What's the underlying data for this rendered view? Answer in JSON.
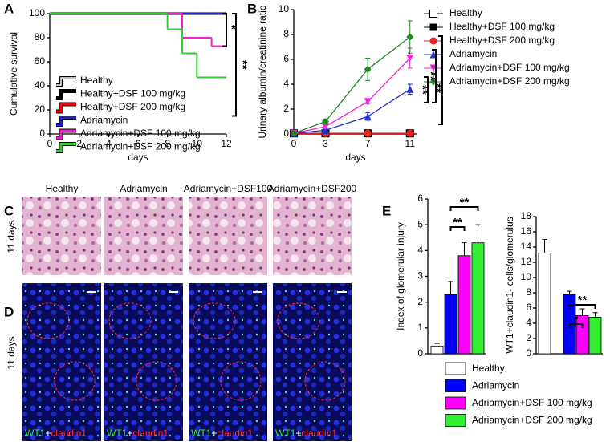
{
  "panels": {
    "C": "C",
    "D": "D",
    "E": "E",
    "columns": [
      "Healthy",
      "Adriamycin",
      "Adriamycin+DSF100",
      "Adriamycin+DSF200"
    ],
    "rows": [
      "11 days",
      "11 days"
    ],
    "stain": [
      "WT1",
      "+",
      "claudin1"
    ]
  },
  "legend_E": [
    {
      "name": "Healthy",
      "color": "#ffffff"
    },
    {
      "name": "Adriamycin",
      "color": "#0000ff"
    },
    {
      "name": "Adriamycin+DSF 100 mg/kg",
      "color": "#ff00ff"
    },
    {
      "name": "Adriamycin+DSF 200 mg/kg",
      "color": "#33ee33"
    }
  ],
  "chart_data": [
    {
      "type": "line",
      "label": "A",
      "step": "post",
      "xlabel": "days",
      "ylabel": "Cumulative survival",
      "x": [
        0,
        8,
        9,
        10,
        11,
        12
      ],
      "xlim": [
        0,
        12
      ],
      "xticks": [
        0,
        2,
        4,
        6,
        8,
        10,
        12
      ],
      "ylim": [
        0,
        100
      ],
      "yticks": [
        0,
        20,
        40,
        60,
        80,
        100
      ],
      "annotations": [
        "*",
        "**"
      ],
      "series": [
        {
          "name": "Healthy",
          "color": "#ffffff",
          "values": [
            100,
            100,
            100,
            100,
            100,
            100
          ]
        },
        {
          "name": "Healthy+DSF 100 mg/kg",
          "color": "#000000",
          "values": [
            100,
            100,
            100,
            100,
            100,
            100
          ]
        },
        {
          "name": "Healthy+DSF 200 mg/kg",
          "color": "#ff0000",
          "values": [
            100,
            100,
            100,
            100,
            100,
            100
          ]
        },
        {
          "name": "Adriamycin",
          "color": "#2222cc",
          "values": [
            100,
            100,
            100,
            100,
            100,
            100
          ]
        },
        {
          "name": "Adriamycin+DSF 100 mg/kg",
          "color": "#ee22cc",
          "values": [
            100,
            100,
            80,
            80,
            73,
            73
          ]
        },
        {
          "name": "Adriamycin+DSF 200 mg/kg",
          "color": "#33cc33",
          "values": [
            100,
            87,
            67,
            47,
            47,
            47
          ]
        }
      ]
    },
    {
      "type": "line",
      "label": "B",
      "xlabel": "days",
      "ylabel": "Urinary albumin/creatinine ratio",
      "x": [
        0,
        3,
        7,
        11
      ],
      "xlim": [
        0,
        11.7
      ],
      "xticks": [
        0,
        3,
        7,
        11
      ],
      "ylim": [
        0,
        10
      ],
      "yticks": [
        0,
        2,
        4,
        6,
        8,
        10
      ],
      "annotations": [
        "**",
        "**",
        "**"
      ],
      "series": [
        {
          "name": "Healthy",
          "color": "#000000",
          "marker": "square-open",
          "values": [
            0.05,
            0.05,
            0.05,
            0.05
          ],
          "errors": [
            0,
            0,
            0,
            0
          ]
        },
        {
          "name": "Healthy+DSF 100 mg/kg",
          "color": "#000000",
          "marker": "square",
          "values": [
            0.05,
            0.05,
            0.05,
            0.05
          ],
          "errors": [
            0,
            0,
            0,
            0
          ]
        },
        {
          "name": "Healthy+DSF 200 mg/kg",
          "color": "#ee2222",
          "marker": "circle",
          "values": [
            0.05,
            0.05,
            0.05,
            0.05
          ],
          "errors": [
            0,
            0,
            0,
            0
          ]
        },
        {
          "name": "Adriamycin",
          "color": "#2233cc",
          "marker": "triangle",
          "values": [
            0.05,
            0.3,
            1.4,
            3.6
          ],
          "errors": [
            0,
            0.1,
            0.3,
            0.4
          ]
        },
        {
          "name": "Adriamycin+DSF 100 mg/kg",
          "color": "#ee22dd",
          "marker": "triangle-down",
          "values": [
            0.05,
            0.6,
            2.6,
            6.1
          ],
          "errors": [
            0,
            0.1,
            0.2,
            0.8
          ]
        },
        {
          "name": "Adriamycin+DSF 200 mg/kg",
          "color": "#228822",
          "marker": "diamond",
          "values": [
            0.05,
            1.0,
            5.2,
            7.8
          ],
          "errors": [
            0,
            0.2,
            0.9,
            1.3
          ]
        }
      ]
    },
    {
      "type": "bar",
      "ylabel": "Index of glomerular injury",
      "values": [
        0.3,
        2.3,
        3.8,
        4.3
      ],
      "errors": [
        0.1,
        0.5,
        0.5,
        0.7
      ],
      "colors": [
        "#ffffff",
        "#0000ff",
        "#ff00ff",
        "#33ee33"
      ],
      "ylim": [
        0,
        6
      ],
      "yticks": [
        0,
        1,
        2,
        3,
        4,
        5,
        6
      ],
      "annotations": [
        "**",
        "**"
      ]
    },
    {
      "type": "bar",
      "ylabel": "WT1+claudin1- cells/glomerulus",
      "values": [
        13.2,
        7.8,
        5.0,
        4.8
      ],
      "errors": [
        1.8,
        0.4,
        0.9,
        0.6
      ],
      "colors": [
        "#ffffff",
        "#0000ff",
        "#ff00ff",
        "#33ee33"
      ],
      "ylim": [
        0,
        18
      ],
      "yticks": [
        0,
        2,
        4,
        6,
        8,
        10,
        12,
        14,
        16,
        18
      ],
      "annotations": [
        "*",
        "**"
      ]
    }
  ]
}
